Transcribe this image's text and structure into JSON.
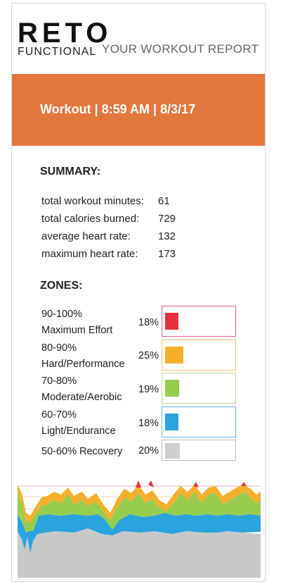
{
  "header": {
    "logo_main": "RETO",
    "logo_sub": "FUNCTIONAL",
    "report_title": "YOUR WORKOUT REPORT"
  },
  "banner": {
    "text": "Workout | 8:59 AM | 8/3/17",
    "color": "#e2773c"
  },
  "summary": {
    "title": "SUMMARY:",
    "rows": [
      {
        "label": "total workout minutes:",
        "value": "61"
      },
      {
        "label": "total calories burned:",
        "value": "729"
      },
      {
        "label": "average heart rate:",
        "value": "132"
      },
      {
        "label": "maximum heart rate:",
        "value": "173"
      }
    ]
  },
  "zones": {
    "title": "ZONES:",
    "items": [
      {
        "line1": "90-100%",
        "line2": "Maximum Effort",
        "pct": "18%",
        "fraction": 0.18,
        "color": "#e3323b",
        "border": "#d9607a"
      },
      {
        "line1": "80-90%",
        "line2": "Hard/Performance",
        "pct": "25%",
        "fraction": 0.25,
        "color": "#f6ae2d",
        "border": "#f4c46a"
      },
      {
        "line1": "70-80%",
        "line2": "Moderate/Aerobic",
        "pct": "19%",
        "fraction": 0.19,
        "color": "#97cd4e",
        "border": "#b9dc8a"
      },
      {
        "line1": "60-70%",
        "line2": "Light/Endurance",
        "pct": "18%",
        "fraction": 0.18,
        "color": "#2ba3de",
        "border": "#5fb6e4"
      },
      {
        "line1": "50-60% Recovery",
        "line2": "",
        "pct": "20%",
        "fraction": 0.2,
        "color": "#cfcfcf",
        "border": "#bdbdbd"
      }
    ]
  }
}
